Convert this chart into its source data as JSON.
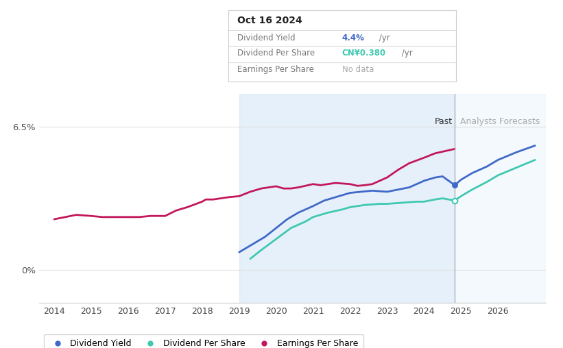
{
  "tooltip_date": "Oct 16 2024",
  "tooltip_yield_value": "4.4%",
  "tooltip_yield_unit": " /yr",
  "tooltip_dps_value": "CN¥0.380",
  "tooltip_dps_unit": " /yr",
  "tooltip_eps": "No data",
  "xlabel_years": [
    2014,
    2015,
    2016,
    2017,
    2018,
    2019,
    2020,
    2021,
    2022,
    2023,
    2024,
    2025,
    2026
  ],
  "ytick_labels": [
    "0%",
    "6.5%"
  ],
  "ytick_values": [
    0,
    6.5
  ],
  "ymin": -1.5,
  "ymax": 8.0,
  "label_past": "Past",
  "label_forecasts": "Analysts Forecasts",
  "shade_start_1": 2019.0,
  "shade_end_1": 2024.83,
  "shade_start_2": 2024.83,
  "shade_end_2": 2027.3,
  "past_line_x": 2024.83,
  "dividend_yield_color": "#4169c8",
  "dividend_per_share_color": "#40c8b0",
  "earnings_per_share_color": "#c2185b",
  "shade_color_1": "#c8dff5",
  "shade_color_2": "#ddeef8",
  "bg_color": "#ffffff",
  "legend_labels": [
    "Dividend Yield",
    "Dividend Per Share",
    "Earnings Per Share"
  ],
  "tooltip_color_yield": "#4169c8",
  "tooltip_color_dps": "#40c8b0",
  "xmin": 2013.6,
  "xmax": 2027.3,
  "div_yield_x": [
    2019.0,
    2019.3,
    2019.7,
    2020.0,
    2020.3,
    2020.6,
    2021.0,
    2021.3,
    2021.6,
    2022.0,
    2022.3,
    2022.6,
    2023.0,
    2023.3,
    2023.6,
    2024.0,
    2024.3,
    2024.5,
    2024.83,
    2025.0,
    2025.3,
    2025.7,
    2026.0,
    2026.5,
    2027.0
  ],
  "div_yield_y": [
    0.8,
    1.1,
    1.5,
    1.9,
    2.3,
    2.6,
    2.9,
    3.15,
    3.3,
    3.5,
    3.55,
    3.6,
    3.55,
    3.65,
    3.75,
    4.05,
    4.2,
    4.25,
    3.85,
    4.1,
    4.4,
    4.7,
    5.0,
    5.35,
    5.65
  ],
  "div_per_share_x": [
    2019.3,
    2019.6,
    2020.0,
    2020.4,
    2020.8,
    2021.0,
    2021.4,
    2021.8,
    2022.0,
    2022.4,
    2022.8,
    2023.0,
    2023.4,
    2023.8,
    2024.0,
    2024.3,
    2024.5,
    2024.83,
    2025.0,
    2025.3,
    2025.7,
    2026.0,
    2026.5,
    2027.0
  ],
  "div_per_share_y": [
    0.5,
    0.9,
    1.4,
    1.9,
    2.2,
    2.4,
    2.6,
    2.75,
    2.85,
    2.95,
    3.0,
    3.0,
    3.05,
    3.1,
    3.1,
    3.2,
    3.25,
    3.15,
    3.35,
    3.65,
    4.0,
    4.3,
    4.65,
    5.0
  ],
  "earnings_x": [
    2014.0,
    2014.3,
    2014.6,
    2015.0,
    2015.3,
    2015.6,
    2016.0,
    2016.3,
    2016.6,
    2017.0,
    2017.3,
    2017.6,
    2018.0,
    2018.1,
    2018.3,
    2018.5,
    2018.7,
    2019.0,
    2019.3,
    2019.6,
    2020.0,
    2020.2,
    2020.4,
    2020.6,
    2021.0,
    2021.2,
    2021.4,
    2021.6,
    2022.0,
    2022.2,
    2022.4,
    2022.6,
    2023.0,
    2023.3,
    2023.6,
    2024.0,
    2024.3,
    2024.83
  ],
  "earnings_y": [
    2.3,
    2.4,
    2.5,
    2.45,
    2.4,
    2.4,
    2.4,
    2.4,
    2.45,
    2.45,
    2.7,
    2.85,
    3.1,
    3.2,
    3.2,
    3.25,
    3.3,
    3.35,
    3.55,
    3.7,
    3.8,
    3.7,
    3.7,
    3.75,
    3.9,
    3.85,
    3.9,
    3.95,
    3.9,
    3.82,
    3.85,
    3.9,
    4.2,
    4.55,
    4.85,
    5.1,
    5.3,
    5.5
  ]
}
